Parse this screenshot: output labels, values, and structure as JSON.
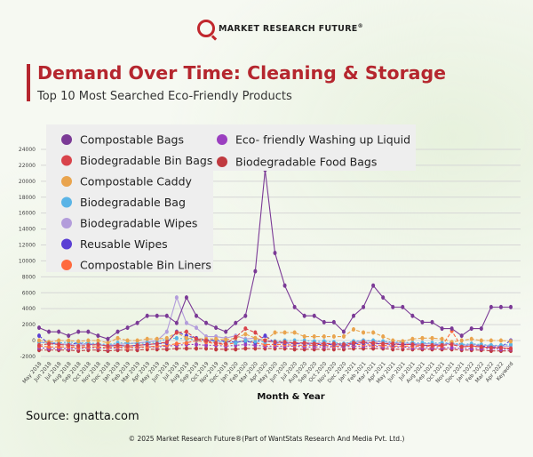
{
  "header": {
    "logo_text": "MARKET RESEARCH FUTURE",
    "logo_mark": "®",
    "title": "Demand Over Time: Cleaning & Storage",
    "subtitle": "Top 10 Most Searched Eco-Friendly Products"
  },
  "colors": {
    "accent": "#b5262e",
    "grid": "#d6d6d6",
    "legend_bg": "#eeeeee"
  },
  "chart_data": {
    "type": "line",
    "title": "Demand Over Time: Cleaning & Storage",
    "subtitle": "Top 10 Most Searched Eco-Friendly Products",
    "xlabel": "Month & Year",
    "ylabel": "",
    "ylim": [
      -2000,
      24000
    ],
    "yticks": [
      -2000,
      0,
      2000,
      4000,
      6000,
      8000,
      10000,
      12000,
      14000,
      16000,
      18000,
      20000,
      22000,
      24000
    ],
    "grid": true,
    "legend_position": "top-left",
    "categories": [
      "May 2018",
      "Jun 2018",
      "Jul 2018",
      "Aug 2018",
      "Sep 2018",
      "Oct 2018",
      "Nov 2018",
      "Dec 2018",
      "Jan 2019",
      "Feb 2019",
      "Mar 2019",
      "Apr 2019",
      "May 2019",
      "Jun 2019",
      "Jul 2019",
      "Aug 2019",
      "Sep 2019",
      "Oct 2019",
      "Nov 2019",
      "Dec 2019",
      "Jan 2020",
      "Feb 2020",
      "Mar 2020",
      "Apr 2020",
      "May 2020",
      "Jun 2020",
      "Jul 2020",
      "Aug 2020",
      "Sep 2020",
      "Oct 2020",
      "Nov 2020",
      "Dec 2020",
      "Jan 2021",
      "Feb 2021",
      "Mar 2021",
      "Apr 2021",
      "May 2021",
      "Jun 2021",
      "Jul 2021",
      "Aug 2021",
      "Sep 2021",
      "Oct 2021",
      "Nov 2021",
      "Dec 2021",
      "Jan 2022",
      "Feb 2022",
      "Mar 2022",
      "Apr 2022",
      "Keyword"
    ],
    "series": [
      {
        "name": "Compostable Bags",
        "color": "#7b3a96",
        "dash": "",
        "values": [
          1600,
          1100,
          1100,
          600,
          1100,
          1100,
          600,
          200,
          1100,
          1600,
          2200,
          3100,
          3100,
          3100,
          2200,
          5400,
          3100,
          2200,
          1600,
          1100,
          2200,
          3100,
          8700,
          21400,
          11000,
          6900,
          4200,
          3100,
          3100,
          2300,
          2300,
          1100,
          3100,
          4200,
          6900,
          5400,
          4200,
          4200,
          3100,
          2300,
          2300,
          1500,
          1500,
          600,
          1500,
          1500,
          4200,
          4200,
          4200
        ]
      },
      {
        "name": "Biodegradable Bin Bags",
        "color": "#d9434b",
        "dash": "4,2",
        "values": [
          -600,
          -400,
          -500,
          -600,
          -700,
          -600,
          -500,
          -700,
          -600,
          -700,
          -600,
          -500,
          -400,
          -200,
          1000,
          1100,
          200,
          0,
          -300,
          -400,
          400,
          1500,
          1000,
          0,
          -200,
          -200,
          -300,
          -300,
          -400,
          -400,
          -400,
          -500,
          -300,
          -200,
          -300,
          -400,
          -400,
          -500,
          -500,
          -600,
          -600,
          -600,
          -500,
          -800,
          -700,
          -800,
          -900,
          -900,
          -1000
        ]
      },
      {
        "name": "Compostable Caddy",
        "color": "#e9a44e",
        "dash": "4,2",
        "values": [
          0,
          -200,
          0,
          0,
          -100,
          0,
          0,
          -300,
          300,
          0,
          0,
          200,
          200,
          300,
          1000,
          300,
          200,
          200,
          200,
          100,
          300,
          800,
          300,
          0,
          1000,
          1000,
          1000,
          500,
          500,
          500,
          500,
          500,
          1400,
          1000,
          1000,
          500,
          0,
          -100,
          200,
          300,
          300,
          200,
          -200,
          0,
          200,
          0,
          0,
          0,
          -100
        ]
      },
      {
        "name": "Biodegradable Bag",
        "color": "#5ab4e6",
        "dash": "2,2",
        "values": [
          -200,
          -300,
          -300,
          -200,
          -300,
          -300,
          -400,
          -500,
          -300,
          -300,
          -400,
          -300,
          -200,
          200,
          300,
          200,
          100,
          0,
          -100,
          -200,
          -300,
          0,
          -100,
          -200,
          -100,
          0,
          0,
          0,
          -100,
          -100,
          -200,
          -400,
          -100,
          0,
          0,
          -100,
          -200,
          -200,
          -300,
          -300,
          -300,
          -300,
          -300,
          -500,
          -400,
          -500,
          -600,
          -600,
          -500
        ]
      },
      {
        "name": "Biodegradable Wipes",
        "color": "#b39ddb",
        "dash": "",
        "values": [
          -300,
          -200,
          -400,
          -500,
          -600,
          -400,
          -500,
          -600,
          -500,
          -400,
          -300,
          -200,
          0,
          1100,
          5400,
          2200,
          1600,
          500,
          500,
          300,
          600,
          200,
          300,
          -100,
          -200,
          -200,
          -300,
          -300,
          -300,
          -300,
          -400,
          -400,
          -200,
          0,
          -100,
          -200,
          -300,
          -300,
          -400,
          -400,
          -400,
          -500,
          -400,
          -600,
          -500,
          -600,
          -600,
          -700,
          -700
        ]
      },
      {
        "name": "Reusable Wipes",
        "color": "#5a3fd4",
        "dash": "4,2",
        "values": [
          600,
          -400,
          -400,
          -500,
          -300,
          -500,
          -500,
          -700,
          -600,
          -700,
          -600,
          -500,
          -400,
          -300,
          1100,
          600,
          300,
          100,
          0,
          -100,
          -200,
          -100,
          -300,
          600,
          -300,
          -300,
          -400,
          -400,
          -500,
          -500,
          -500,
          -600,
          -400,
          -300,
          -400,
          -400,
          -500,
          -500,
          -500,
          -600,
          -600,
          -500,
          -300,
          -700,
          -500,
          -700,
          -800,
          -800,
          0
        ]
      },
      {
        "name": "Compostable Bin Liners",
        "color": "#ff6a3d",
        "dash": "4,2",
        "values": [
          -700,
          -800,
          -800,
          -800,
          -900,
          -800,
          -800,
          -900,
          -800,
          -900,
          -800,
          -800,
          -700,
          -600,
          -400,
          -300,
          0,
          -200,
          -400,
          -500,
          -300,
          0,
          -300,
          -500,
          -500,
          -500,
          -600,
          -600,
          -600,
          -600,
          -700,
          -700,
          -500,
          -500,
          -600,
          -600,
          -700,
          -700,
          -700,
          -700,
          -700,
          -700,
          1200,
          -800,
          -700,
          -800,
          -900,
          -900,
          -1000
        ]
      },
      {
        "name": "Eco- friendly Washing up Liquid",
        "color": "#9b3fc0",
        "dash": "2,2",
        "values": [
          -900,
          -1000,
          -1000,
          -1000,
          -1000,
          -900,
          -900,
          -1000,
          -900,
          -900,
          -900,
          -800,
          -800,
          -700,
          -600,
          -500,
          -500,
          -600,
          -600,
          -700,
          -600,
          -500,
          -600,
          -700,
          -700,
          -700,
          -700,
          -800,
          -800,
          -800,
          -800,
          -800,
          -700,
          -700,
          -700,
          -800,
          -800,
          -800,
          -900,
          -900,
          -900,
          -900,
          -900,
          -1000,
          -1000,
          -1000,
          -1000,
          -1100,
          -1100
        ]
      },
      {
        "name": "Biodegradable Food Bags",
        "color": "#c0393f",
        "dash": "4,2",
        "values": [
          -1200,
          -1200,
          -1200,
          -1200,
          -1300,
          -1200,
          -1200,
          -1300,
          -1200,
          -1200,
          -1200,
          -1100,
          -1100,
          -1100,
          -1000,
          -1000,
          -1000,
          -1000,
          -1100,
          -1100,
          -1100,
          -1000,
          -1000,
          -1000,
          -1000,
          -1000,
          -1100,
          -1100,
          -1100,
          -1100,
          -1100,
          -1100,
          -1000,
          -1000,
          -1000,
          -1000,
          -1100,
          -1100,
          -1100,
          -1100,
          -1100,
          -1100,
          -1100,
          -1200,
          -1200,
          -1200,
          -1300,
          -1300,
          -1300
        ]
      }
    ]
  },
  "source": "Source: gnatta.com",
  "footer": "© 2025 Market Research Future®(Part of WantStats Research And Media Pvt. Ltd.)"
}
